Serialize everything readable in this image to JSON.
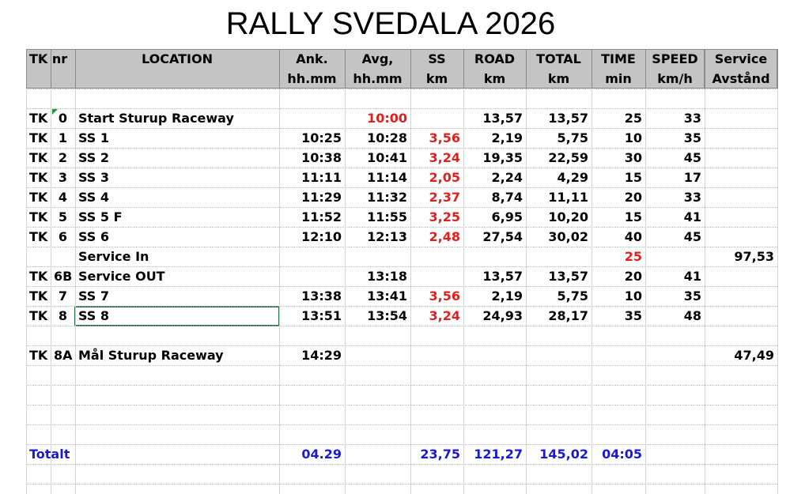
{
  "title": "RALLY SVEDALA 2026",
  "header": {
    "row1": [
      "TK nr",
      "LOCATION",
      "Ank.",
      "Avg,",
      "SS",
      "ROAD",
      "TOTAL",
      "TIME",
      "SPEED",
      "Service"
    ],
    "row2": [
      null,
      null,
      "hh.mm",
      "hh.mm",
      "km",
      "km",
      "km",
      "min",
      "km/h",
      "Avstånd"
    ]
  },
  "accent_color": "#e0201c",
  "stages": [
    [
      "TK",
      "0",
      "Start Sturup Raceway",
      null,
      {
        "text": "10:00",
        "color": "#e0201c"
      },
      null,
      "13,57",
      "13,57",
      "25",
      "33",
      null
    ],
    [
      "TK",
      "1",
      "SS 1",
      "10:25",
      "10:28",
      "3,56",
      "2,19",
      "5,75",
      "10",
      "35",
      null
    ],
    [
      "TK",
      "2",
      "SS 2",
      "10:38",
      "10:41",
      "3,24",
      "19,35",
      "22,59",
      "30",
      "45",
      null
    ],
    [
      "TK",
      "3",
      "SS 3",
      "11:11",
      "11:14",
      "2,05",
      "2,24",
      "4,29",
      "15",
      "17",
      null
    ],
    [
      "TK",
      "4",
      "SS 4",
      "11:29",
      "11:32",
      "2,37",
      "8,74",
      "11,11",
      "20",
      "33",
      null
    ],
    [
      "TK",
      "5",
      "SS 5 F",
      "11:52",
      "11:55",
      "3,25",
      "6,95",
      "10,20",
      "15",
      "41",
      null
    ],
    [
      "TK",
      "6",
      "SS 6",
      "12:10",
      "12:13",
      "2,48",
      "27,54",
      "30,02",
      "40",
      "45",
      null
    ],
    [
      null,
      null,
      "Service In",
      null,
      null,
      null,
      null,
      null,
      {
        "text": "25",
        "color": "#e0201c"
      },
      null,
      "97,53"
    ],
    [
      "TK",
      "6B",
      "Service OUT",
      null,
      "13:18",
      null,
      "13,57",
      "13,57",
      "20",
      "41",
      null
    ],
    [
      "TK",
      "7",
      "SS 7",
      "13:38",
      "13:41",
      "3,56",
      "2,19",
      "5,75",
      "10",
      "35",
      null
    ],
    [
      "TK",
      "8",
      "SS 8",
      "13:51",
      "13:54",
      "3,24",
      "24,93",
      "28,17",
      "35",
      "48",
      null
    ]
  ],
  "finish": [
    "TK",
    "8A",
    "Mål Sturup Raceway",
    "14:29",
    null,
    null,
    null,
    null,
    null,
    null,
    "47,49"
  ],
  "totals": {
    "color": "#1a1ad0",
    "cells": [
      "Totalt",
      null,
      null,
      "04.29",
      null,
      "23,75",
      "121,27",
      "145,02",
      "04:05",
      null,
      null
    ]
  }
}
